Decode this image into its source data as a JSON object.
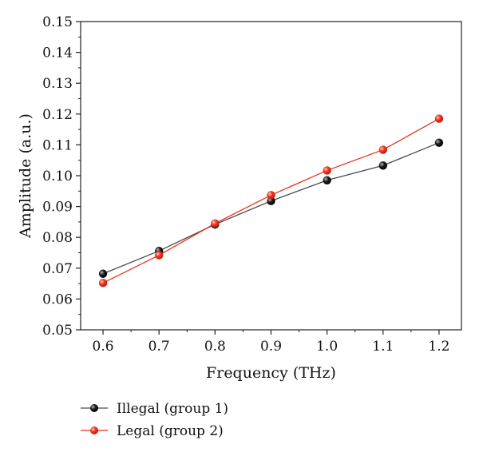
{
  "chart_data": {
    "type": "line",
    "title": "",
    "xlabel": "Frequency (THz)",
    "ylabel": "Amplitude (a.u.)",
    "x": [
      0.6,
      0.7,
      0.8,
      0.9,
      1.0,
      1.1,
      1.2
    ],
    "x_tick_labels": [
      "0.6",
      "0.7",
      "0.8",
      "0.9",
      "1.0",
      "1.1",
      "1.2"
    ],
    "y_tick_labels": [
      "0.05",
      "0.06",
      "0.07",
      "0.08",
      "0.09",
      "0.10",
      "0.11",
      "0.12",
      "0.13",
      "0.14",
      "0.15"
    ],
    "xlim": [
      0.56,
      1.24
    ],
    "ylim": [
      0.05,
      0.15
    ],
    "grid": false,
    "legend_position": "bottom-left",
    "series": [
      {
        "name": "Illegal (group 1)",
        "color": "#4a4a4a",
        "marker_color": "#111111",
        "values": [
          0.0682,
          0.0756,
          0.0842,
          0.0918,
          0.0985,
          0.1033,
          0.1107
        ]
      },
      {
        "name": "Legal (group 2)",
        "color": "#e8321e",
        "marker_color": "#e8321e",
        "values": [
          0.0652,
          0.0742,
          0.0845,
          0.0937,
          0.1017,
          0.1084,
          0.1185
        ]
      }
    ]
  }
}
